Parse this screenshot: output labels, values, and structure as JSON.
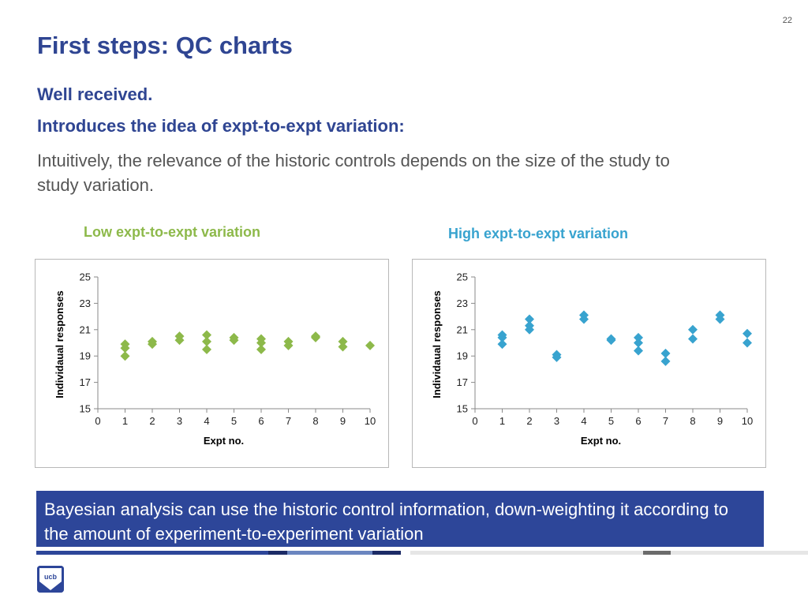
{
  "slide": {
    "number": "22",
    "title": "First steps: QC charts",
    "subtitle1": "Well received.",
    "subtitle2": "Introduces the idea of expt-to-expt variation:",
    "body": "Intuitively, the relevance of the historic controls depends on the size of the study to study variation.",
    "callout": "Bayesian analysis can use the historic control information, down-weighting it according to the amount of experiment-to-experiment variation",
    "logo_text": "ucb"
  },
  "colors": {
    "title": "#2f4592",
    "low_series": "#8db94a",
    "high_series": "#38a3cf",
    "callout_bg": "#2d4699"
  },
  "chart_data": [
    {
      "type": "scatter",
      "title": "Low expt-to-expt variation",
      "xlabel": "Expt no.",
      "ylabel": "Individaual responses",
      "xlim": [
        0,
        10
      ],
      "ylim": [
        15,
        25
      ],
      "xticks": [
        0,
        1,
        2,
        3,
        4,
        5,
        6,
        7,
        8,
        9,
        10
      ],
      "yticks": [
        15,
        17,
        19,
        21,
        23,
        25
      ],
      "grid": false,
      "marker": "diamond",
      "color": "#8db94a",
      "points": [
        [
          1,
          19.9
        ],
        [
          1,
          19.6
        ],
        [
          1,
          19.0
        ],
        [
          2,
          20.1
        ],
        [
          2,
          19.9
        ],
        [
          3,
          20.5
        ],
        [
          3,
          20.2
        ],
        [
          4,
          20.6
        ],
        [
          4,
          20.1
        ],
        [
          4,
          19.5
        ],
        [
          5,
          20.4
        ],
        [
          5,
          20.2
        ],
        [
          6,
          20.3
        ],
        [
          6,
          20.0
        ],
        [
          6,
          19.5
        ],
        [
          7,
          20.1
        ],
        [
          7,
          19.8
        ],
        [
          8,
          20.5
        ],
        [
          8,
          20.4
        ],
        [
          9,
          20.1
        ],
        [
          9,
          19.7
        ],
        [
          10,
          19.8
        ]
      ]
    },
    {
      "type": "scatter",
      "title": "High expt-to-expt variation",
      "xlabel": "Expt no.",
      "ylabel": "Individaual responses",
      "xlim": [
        0,
        10
      ],
      "ylim": [
        15,
        25
      ],
      "xticks": [
        0,
        1,
        2,
        3,
        4,
        5,
        6,
        7,
        8,
        9,
        10
      ],
      "yticks": [
        15,
        17,
        19,
        21,
        23,
        25
      ],
      "grid": false,
      "marker": "diamond",
      "color": "#38a3cf",
      "points": [
        [
          1,
          20.6
        ],
        [
          1,
          20.4
        ],
        [
          1,
          19.9
        ],
        [
          2,
          21.8
        ],
        [
          2,
          21.3
        ],
        [
          2,
          21.0
        ],
        [
          3,
          19.1
        ],
        [
          3,
          18.9
        ],
        [
          4,
          22.1
        ],
        [
          4,
          21.8
        ],
        [
          5,
          20.3
        ],
        [
          5,
          20.2
        ],
        [
          6,
          20.4
        ],
        [
          6,
          20.0
        ],
        [
          6,
          19.4
        ],
        [
          7,
          19.2
        ],
        [
          7,
          18.6
        ],
        [
          8,
          21.0
        ],
        [
          8,
          20.3
        ],
        [
          9,
          22.1
        ],
        [
          9,
          21.8
        ],
        [
          10,
          20.7
        ],
        [
          10,
          20.0
        ]
      ]
    }
  ]
}
